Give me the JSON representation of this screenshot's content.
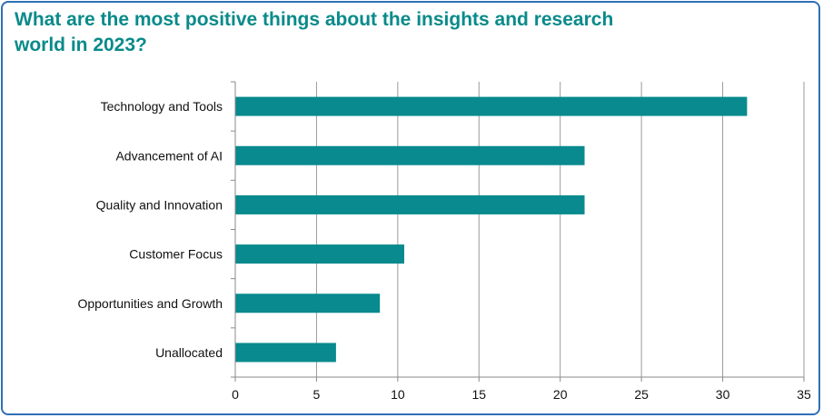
{
  "chart_data": {
    "type": "bar",
    "orientation": "horizontal",
    "title": "What are the most positive things about the insights and research world in 2023?",
    "categories": [
      "Technology and Tools",
      "Advancement of AI",
      "Quality and Innovation",
      "Customer Focus",
      "Opportunities and Growth",
      "Unallocated"
    ],
    "values": [
      31.5,
      21.5,
      21.5,
      10.4,
      8.9,
      6.2
    ],
    "xlim": [
      0,
      35
    ],
    "xticks": [
      0,
      5,
      10,
      15,
      20,
      25,
      30,
      35
    ],
    "xlabel": "",
    "ylabel": "",
    "grid": "vertical",
    "legend": "none",
    "bar_color": "#088a8e",
    "title_color": "#0a8a8a",
    "border_color": "#2f6fb7"
  }
}
